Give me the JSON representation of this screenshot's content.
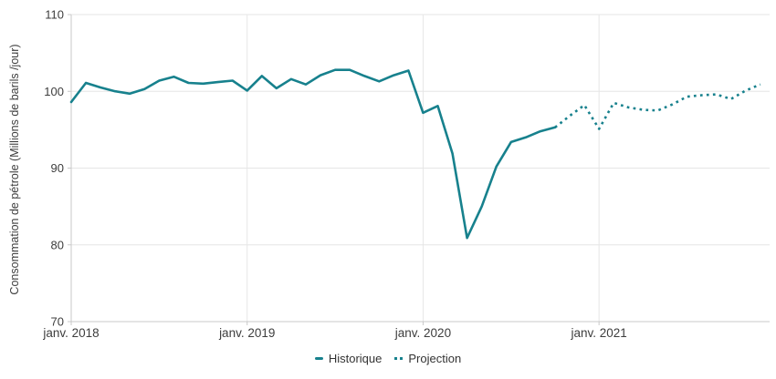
{
  "colors": {
    "line": "#17818d",
    "grid": "#e6e6e6",
    "axis": "#c9c9c9",
    "tick_text": "#3d3d3d",
    "legend_text": "#333333",
    "background": "#ffffff"
  },
  "legend": {
    "items": [
      {
        "label": "Historique",
        "marker": "solid-dash"
      },
      {
        "label": "Projection",
        "marker": "dots"
      }
    ]
  },
  "chart_data": {
    "type": "line",
    "title": "",
    "xlabel": "",
    "ylabel": "Consommation de pétrole (Millions de barils /jour)",
    "ylim": [
      70,
      110
    ],
    "y_ticks": [
      70,
      80,
      90,
      100,
      110
    ],
    "x_tick_labels": [
      "janv. 2018",
      "janv. 2019",
      "janv. 2020",
      "janv. 2021"
    ],
    "x_tick_month_index": [
      0,
      12,
      24,
      36
    ],
    "months_total": 48,
    "grid": true,
    "legend_position": "bottom-center",
    "series": [
      {
        "name": "Historique",
        "style": "solid",
        "color": "#17818d",
        "start_month_index": 0,
        "values": [
          98.6,
          101.1,
          100.5,
          100.0,
          99.7,
          100.3,
          101.4,
          101.9,
          101.1,
          101.0,
          101.2,
          101.4,
          100.1,
          102.0,
          100.4,
          101.6,
          100.9,
          102.1,
          102.8,
          102.8,
          102.0,
          101.3,
          102.1,
          102.7,
          97.2,
          98.1,
          91.9,
          80.9,
          85.0,
          90.2,
          93.4,
          94.0,
          94.8,
          95.3
        ]
      },
      {
        "name": "Projection",
        "style": "dotted",
        "color": "#17818d",
        "start_month_index": 33,
        "values": [
          95.3,
          96.8,
          98.2,
          95.1,
          98.5,
          97.9,
          97.6,
          97.5,
          98.3,
          99.3,
          99.5,
          99.6,
          99.0,
          100.1,
          100.9
        ]
      }
    ]
  }
}
